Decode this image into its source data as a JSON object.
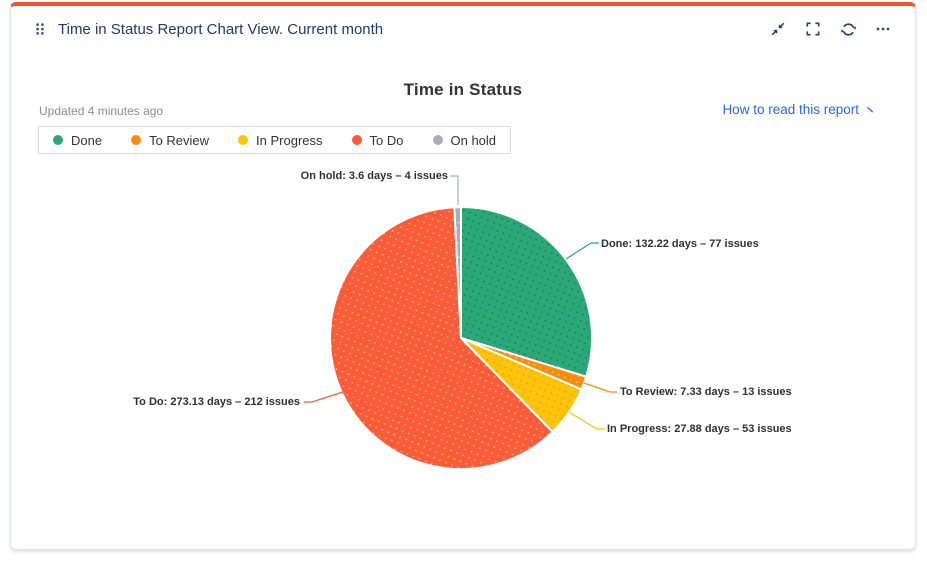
{
  "card": {
    "title": "Time in Status Report Chart View. Current month",
    "toolbar": {
      "collapse": "collapse",
      "fullscreen": "fullscreen",
      "refresh": "refresh",
      "more": "more"
    }
  },
  "chart": {
    "title": "Time in Status",
    "updated": "Updated 4 minutes ago",
    "help_link": "How to read this report"
  },
  "colors": {
    "accent_bar": "#f4512c",
    "header_text": "#1d3c66",
    "link": "#2569e6",
    "muted_text": "#8c8c8c",
    "label_text": "#303030",
    "icon": "#2e415f",
    "card_border": "#e0e4ea"
  },
  "chart_data": {
    "type": "pie",
    "title": "Time in Status",
    "legend_position": "top-left",
    "start_angle_deg": 0,
    "direction": "clockwise",
    "units": "days",
    "slices": [
      {
        "name": "Done",
        "days": 132.22,
        "issues": 77,
        "color": "#2aa876",
        "dot_color": "#2a5a6e",
        "label": "Done: 132.22 days – 77 issues"
      },
      {
        "name": "To Review",
        "days": 7.33,
        "issues": 13,
        "color": "#f78d09",
        "dot_color": "#ffdfae",
        "label": "To Review: 7.33 days – 13 issues"
      },
      {
        "name": "In Progress",
        "days": 27.88,
        "issues": 53,
        "color": "#fcc40a",
        "dot_color": "#f28a1e",
        "label": "In Progress: 27.88 days – 53 issues"
      },
      {
        "name": "To Do",
        "days": 273.13,
        "issues": 212,
        "color": "#f95b3d",
        "dot_color": "#ffd44d",
        "label": "To Do: 273.13 days – 212 issues"
      },
      {
        "name": "On hold",
        "days": 3.6,
        "issues": 4,
        "color": "#a8adbd",
        "dot_color": "#ffffff",
        "label": "On hold: 3.6 days – 4 issues"
      }
    ]
  }
}
